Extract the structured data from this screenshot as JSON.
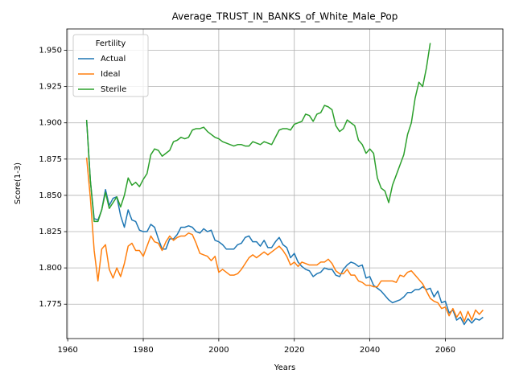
{
  "chart_data": {
    "type": "line",
    "title": "Average_TRUST_IN_BANKS_of_White_Male_Pop",
    "x_label": "Years",
    "y_label": "Score(1-3)",
    "legend_title": "Fertility",
    "legend_loc": "upper left",
    "grid": true,
    "xlim": [
      1959.75,
      2075.25
    ],
    "xticks": [
      1960,
      1980,
      2000,
      2020,
      2040,
      2060
    ],
    "ylim": [
      1.7513,
      1.9647
    ],
    "yticks": [
      1.775,
      {
        "value": 1.8,
        "label": "1.800"
      },
      1.825,
      {
        "value": 1.85,
        "label": "1.850"
      },
      1.875,
      {
        "value": 1.9,
        "label": "1.900"
      },
      1.925,
      {
        "value": 1.95,
        "label": "1.950"
      }
    ],
    "x": [
      1965,
      1966,
      1967,
      1968,
      1969,
      1970,
      1971,
      1972,
      1973,
      1974,
      1975,
      1976,
      1977,
      1978,
      1979,
      1980,
      1981,
      1982,
      1983,
      1984,
      1985,
      1986,
      1987,
      1988,
      1989,
      1990,
      1991,
      1992,
      1993,
      1994,
      1995,
      1996,
      1997,
      1998,
      1999,
      2000,
      2001,
      2002,
      2003,
      2004,
      2005,
      2006,
      2007,
      2008,
      2009,
      2010,
      2011,
      2012,
      2013,
      2014,
      2015,
      2016,
      2017,
      2018,
      2019,
      2020,
      2021,
      2022,
      2023,
      2024,
      2025,
      2026,
      2027,
      2028,
      2029,
      2030,
      2031,
      2032,
      2033,
      2034,
      2035,
      2036,
      2037,
      2038,
      2039,
      2040,
      2041,
      2042,
      2043,
      2044,
      2045,
      2046,
      2047,
      2048,
      2049,
      2050,
      2051,
      2052,
      2053,
      2054,
      2055,
      2056,
      2057,
      2058,
      2059,
      2060,
      2061,
      2062,
      2063,
      2064,
      2065,
      2066,
      2067,
      2068,
      2069,
      2070
    ],
    "series": [
      {
        "name": "Actual",
        "color": "#1f77b4",
        "values": [
          1.902,
          1.86,
          1.834,
          1.833,
          1.84,
          1.854,
          1.843,
          1.848,
          1.849,
          1.836,
          1.828,
          1.84,
          1.833,
          1.832,
          1.826,
          1.825,
          1.825,
          1.83,
          1.828,
          1.82,
          1.813,
          1.813,
          1.82,
          1.82,
          1.823,
          1.828,
          1.828,
          1.829,
          1.828,
          1.825,
          1.824,
          1.827,
          1.825,
          1.826,
          1.819,
          1.818,
          1.816,
          1.813,
          1.813,
          1.813,
          1.816,
          1.817,
          1.821,
          1.822,
          1.818,
          1.818,
          1.815,
          1.819,
          1.814,
          1.814,
          1.818,
          1.821,
          1.816,
          1.814,
          1.807,
          1.81,
          1.804,
          1.801,
          1.799,
          1.798,
          1.794,
          1.796,
          1.797,
          1.8,
          1.799,
          1.799,
          1.795,
          1.794,
          1.799,
          1.802,
          1.804,
          1.803,
          1.801,
          1.802,
          1.793,
          1.794,
          1.788,
          1.786,
          1.784,
          1.781,
          1.778,
          1.776,
          1.777,
          1.778,
          1.78,
          1.783,
          1.783,
          1.785,
          1.785,
          1.787,
          1.785,
          1.786,
          1.78,
          1.784,
          1.776,
          1.777,
          1.769,
          1.771,
          1.764,
          1.766,
          1.761,
          1.765,
          1.762,
          1.765,
          1.764,
          1.766
        ]
      },
      {
        "name": "Ideal",
        "color": "#ff7f0e",
        "values": [
          1.876,
          1.848,
          1.812,
          1.791,
          1.813,
          1.816,
          1.799,
          1.793,
          1.8,
          1.794,
          1.803,
          1.815,
          1.817,
          1.812,
          1.812,
          1.808,
          1.815,
          1.822,
          1.818,
          1.817,
          1.812,
          1.818,
          1.822,
          1.819,
          1.821,
          1.822,
          1.822,
          1.824,
          1.823,
          1.817,
          1.81,
          1.809,
          1.808,
          1.805,
          1.808,
          1.797,
          1.799,
          1.797,
          1.795,
          1.795,
          1.796,
          1.799,
          1.803,
          1.807,
          1.809,
          1.807,
          1.809,
          1.811,
          1.809,
          1.811,
          1.813,
          1.815,
          1.812,
          1.808,
          1.802,
          1.804,
          1.801,
          1.804,
          1.803,
          1.802,
          1.802,
          1.802,
          1.804,
          1.804,
          1.806,
          1.803,
          1.798,
          1.796,
          1.796,
          1.799,
          1.795,
          1.795,
          1.791,
          1.79,
          1.788,
          1.788,
          1.787,
          1.787,
          1.791,
          1.791,
          1.791,
          1.791,
          1.79,
          1.795,
          1.794,
          1.797,
          1.798,
          1.795,
          1.792,
          1.789,
          1.784,
          1.779,
          1.777,
          1.776,
          1.772,
          1.773,
          1.767,
          1.772,
          1.766,
          1.77,
          1.763,
          1.77,
          1.764,
          1.771,
          1.768,
          1.771
        ]
      },
      {
        "name": "Sterile",
        "color": "#2ca02c",
        "values": [
          1.902,
          1.86,
          1.832,
          1.832,
          1.84,
          1.852,
          1.841,
          1.845,
          1.849,
          1.842,
          1.85,
          1.862,
          1.857,
          1.859,
          1.856,
          1.861,
          1.865,
          1.878,
          1.882,
          1.881,
          1.877,
          1.879,
          1.881,
          1.887,
          1.888,
          1.89,
          1.889,
          1.89,
          1.895,
          1.896,
          1.896,
          1.897,
          1.894,
          1.892,
          1.89,
          1.889,
          1.887,
          1.886,
          1.885,
          1.884,
          1.885,
          1.885,
          1.884,
          1.884,
          1.887,
          1.886,
          1.885,
          1.887,
          1.886,
          1.885,
          1.89,
          1.895,
          1.896,
          1.896,
          1.895,
          1.899,
          1.9,
          1.901,
          1.906,
          1.905,
          1.901,
          1.906,
          1.907,
          1.912,
          1.911,
          1.909,
          1.898,
          1.894,
          1.896,
          1.902,
          1.9,
          1.898,
          1.888,
          1.885,
          1.879,
          1.882,
          1.879,
          1.862,
          1.855,
          1.853,
          1.845,
          1.857,
          1.864,
          1.871,
          1.878,
          1.892,
          1.9,
          1.917,
          1.928,
          1.925,
          1.938,
          1.955,
          null,
          null,
          null,
          null,
          null,
          null,
          null,
          null,
          null,
          null,
          null,
          null,
          null,
          null
        ]
      }
    ]
  }
}
